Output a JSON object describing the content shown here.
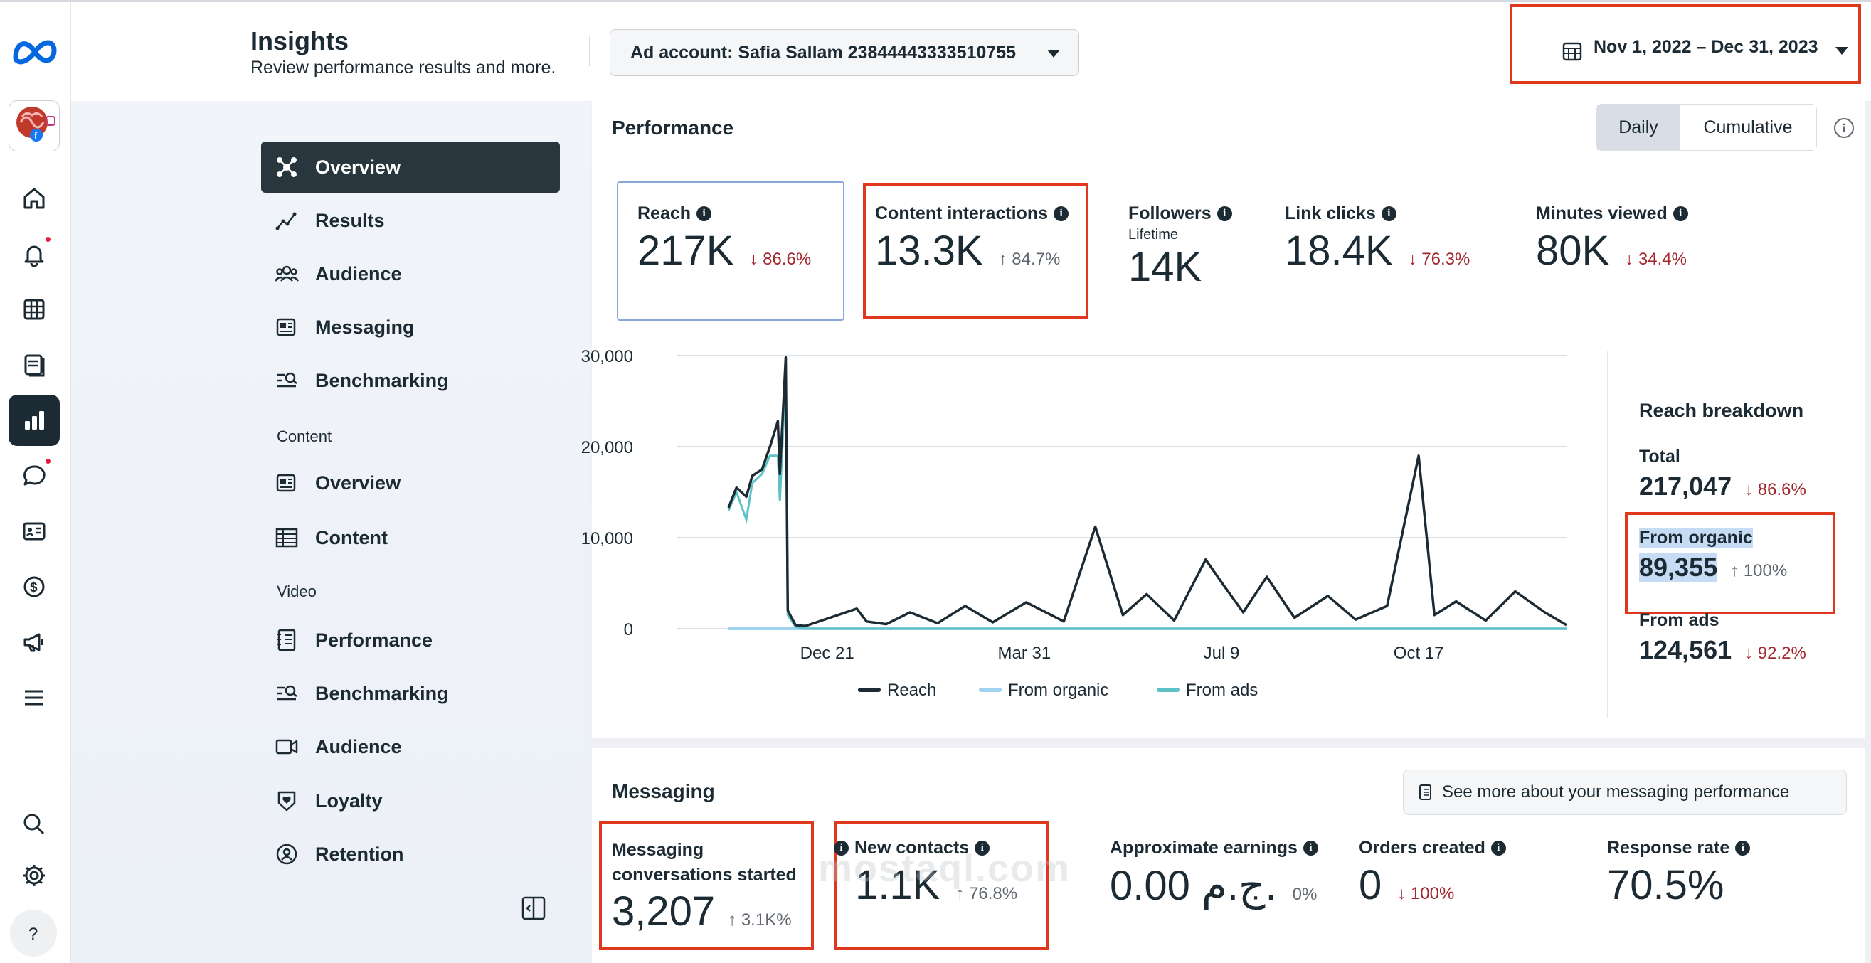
{
  "header": {
    "title": "Insights",
    "subtitle": "Review performance results and more.",
    "ad_account": "Ad account: Safia Sallam 23844443333510755",
    "date_range": "Nov 1, 2022 – Dec 31, 2023"
  },
  "rail": {
    "icons": [
      "meta-logo-icon",
      "page-avatar",
      "home-icon",
      "notifications-icon",
      "table-icon",
      "pages-icon",
      "insights-icon",
      "chat-icon",
      "contacts-icon",
      "monetization-icon",
      "ads-icon",
      "menu-icon",
      "search-icon",
      "settings-icon",
      "help-icon"
    ]
  },
  "nav": {
    "items": [
      {
        "label": "Overview"
      },
      {
        "label": "Results"
      },
      {
        "label": "Audience"
      },
      {
        "label": "Messaging"
      },
      {
        "label": "Benchmarking"
      }
    ],
    "content_heading": "Content",
    "content_items": [
      {
        "label": "Overview"
      },
      {
        "label": "Content"
      }
    ],
    "video_heading": "Video",
    "video_items": [
      {
        "label": "Performance"
      },
      {
        "label": "Benchmarking"
      },
      {
        "label": "Audience"
      },
      {
        "label": "Loyalty"
      },
      {
        "label": "Retention"
      }
    ]
  },
  "performance": {
    "title": "Performance",
    "toggle": {
      "daily": "Daily",
      "cumulative": "Cumulative"
    },
    "metrics": [
      {
        "name": "Reach",
        "value": "217K",
        "change": "↓ 86.6%",
        "dir": "down"
      },
      {
        "name": "Content interactions",
        "value": "13.3K",
        "change": "↑ 84.7%",
        "dir": "up"
      },
      {
        "name": "Followers",
        "sub": "Lifetime",
        "value": "14K"
      },
      {
        "name": "Link clicks",
        "value": "18.4K",
        "change": "↓ 76.3%",
        "dir": "down"
      },
      {
        "name": "Minutes viewed",
        "value": "80K",
        "change": "↓ 34.4%",
        "dir": "down"
      }
    ],
    "breakdown": {
      "title": "Reach breakdown",
      "total_label": "Total",
      "total_value": "217,047",
      "total_change": "↓ 86.6%",
      "organic_label": "From organic",
      "organic_value": "89,355",
      "organic_change": "↑ 100%",
      "ads_label": "From ads",
      "ads_value": "124,561",
      "ads_change": "↓ 92.2%"
    }
  },
  "chart_data": {
    "type": "line",
    "ytick_labels": [
      "0",
      "10,000",
      "20,000",
      "30,000"
    ],
    "yticks": [
      0,
      10000,
      20000,
      30000
    ],
    "ylim": [
      0,
      30000
    ],
    "xtick_labels": [
      "Dec 21",
      "Mar 31",
      "Jul 9",
      "Oct 17"
    ],
    "series": [
      {
        "name": "Reach",
        "color": "#1c2b33"
      },
      {
        "name": "From organic",
        "color": "#9fd3ef"
      },
      {
        "name": "From ads",
        "color": "#5cc2c6"
      }
    ],
    "x": [
      "2022-11-01",
      "2022-11-05",
      "2022-11-10",
      "2022-11-13",
      "2022-11-18",
      "2022-11-22",
      "2022-11-26",
      "2022-11-27",
      "2022-11-30",
      "2022-12-01",
      "2022-12-05",
      "2022-12-10",
      "2023-01-05",
      "2023-01-10",
      "2023-01-20",
      "2023-02-01",
      "2023-02-15",
      "2023-03-01",
      "2023-03-15",
      "2023-04-01",
      "2023-04-20",
      "2023-05-06",
      "2023-05-20",
      "2023-06-01",
      "2023-06-15",
      "2023-07-01",
      "2023-07-10",
      "2023-07-20",
      "2023-08-01",
      "2023-08-15",
      "2023-09-01",
      "2023-09-15",
      "2023-10-01",
      "2023-10-17",
      "2023-10-25",
      "2023-11-05",
      "2023-11-20",
      "2023-12-05",
      "2023-12-20",
      "2023-12-31"
    ],
    "reach": [
      13300,
      15500,
      14500,
      16800,
      17500,
      20000,
      22800,
      17000,
      29800,
      2000,
      400,
      300,
      2200,
      800,
      500,
      1800,
      600,
      2500,
      700,
      2900,
      800,
      11200,
      1500,
      3800,
      900,
      7600,
      4800,
      1800,
      5700,
      1200,
      3600,
      1000,
      2500,
      19000,
      1500,
      3000,
      900,
      4100,
      1800,
      400
    ],
    "organic": [
      0,
      0,
      0,
      0,
      0,
      0,
      0,
      0,
      0,
      0,
      0,
      0,
      0,
      0,
      0,
      0,
      0,
      0,
      0,
      0,
      0,
      0,
      0,
      0,
      0,
      0,
      0,
      0,
      0,
      0,
      0,
      0,
      0,
      0,
      0,
      0,
      0,
      0,
      0,
      0
    ],
    "ads": [
      13000,
      15000,
      12000,
      16000,
      17000,
      19000,
      19000,
      14000,
      28000,
      1500,
      200,
      0,
      0,
      0,
      0,
      0,
      0,
      0,
      0,
      0,
      0,
      0,
      0,
      0,
      0,
      0,
      0,
      0,
      0,
      0,
      0,
      0,
      0,
      0,
      0,
      0,
      0,
      0,
      0,
      0
    ]
  },
  "messaging": {
    "title": "Messaging",
    "see_more": "See more about your messaging performance",
    "metrics": [
      {
        "name": "Messaging conversations started",
        "value": "3,207",
        "change": "↑ 3.1K%",
        "dir": "up"
      },
      {
        "name": "New contacts",
        "value": "1.1K",
        "change": "↑ 76.8%",
        "dir": "up"
      },
      {
        "name": "Approximate earnings",
        "value": "0.00 ج.م.",
        "change": "0%",
        "dir": "up"
      },
      {
        "name": "Orders created",
        "value": "0",
        "change": "↓ 100%",
        "dir": "down"
      },
      {
        "name": "Response rate",
        "value": "70.5%"
      }
    ]
  },
  "watermark": "mostaql.com"
}
